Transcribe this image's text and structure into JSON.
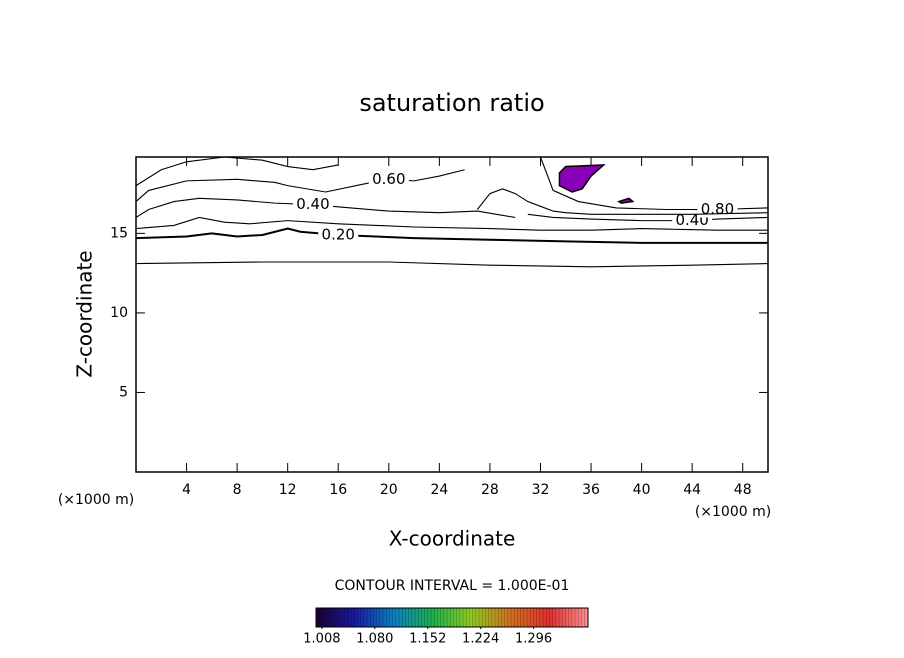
{
  "chart_data": {
    "type": "contour",
    "title": "saturation ratio",
    "x_label": "X-coordinate",
    "y_label": "Z-coordinate",
    "x_unit": "(×1000 m)",
    "y_unit": "(×1000 m)",
    "xlim": [
      0,
      50
    ],
    "ylim": [
      0,
      19.8
    ],
    "xticks": [
      4,
      8,
      12,
      16,
      20,
      24,
      28,
      32,
      36,
      40,
      44,
      48
    ],
    "yticks": [
      5,
      10,
      15
    ],
    "line_color": "#000000",
    "contours": [
      {
        "x": [
          0,
          10,
          20,
          28,
          36,
          44,
          50
        ],
        "y": [
          13.1,
          13.2,
          13.2,
          13.0,
          12.9,
          13.0,
          13.1
        ]
      },
      {
        "level": {
          "value": 0.2,
          "label": "0.20"
        },
        "x": [
          0,
          4,
          6,
          8,
          10,
          12,
          13,
          16,
          22,
          28,
          34,
          40,
          46,
          50
        ],
        "y": [
          14.7,
          14.8,
          15.0,
          14.8,
          14.9,
          15.3,
          15.1,
          14.9,
          14.7,
          14.6,
          14.5,
          14.4,
          14.4,
          14.4
        ]
      },
      {
        "x": [
          0,
          3,
          5,
          7,
          9,
          12,
          16,
          22,
          28,
          32,
          36,
          40,
          46,
          50
        ],
        "y": [
          15.3,
          15.5,
          16.0,
          15.7,
          15.6,
          15.8,
          15.6,
          15.4,
          15.3,
          15.2,
          15.2,
          15.3,
          15.2,
          15.2
        ]
      },
      {
        "level": {
          "value": 0.4,
          "label": "0.40"
        },
        "x": [
          0,
          1,
          3,
          5,
          8,
          11,
          14,
          17,
          20,
          24,
          27,
          30
        ],
        "y": [
          16.0,
          16.5,
          17.0,
          17.2,
          17.1,
          16.9,
          16.8,
          16.6,
          16.4,
          16.3,
          16.4,
          16.0
        ]
      },
      {
        "level": {
          "value": 0.4,
          "label": "0.40"
        },
        "x": [
          31,
          33,
          36,
          40,
          44,
          46,
          50
        ],
        "y": [
          16.2,
          16.0,
          15.9,
          15.8,
          15.8,
          15.9,
          16.0
        ]
      },
      {
        "level": {
          "value": 0.6,
          "label": "0.60"
        },
        "x": [
          0,
          1,
          4,
          8,
          11,
          12,
          15,
          18,
          20,
          22,
          24,
          26
        ],
        "y": [
          17.0,
          17.7,
          18.3,
          18.4,
          18.2,
          18.0,
          17.6,
          18.1,
          18.4,
          18.3,
          18.6,
          19.0
        ]
      },
      {
        "level": {
          "value": 0.8,
          "label": "0.80"
        },
        "x": [
          32,
          33,
          35,
          38,
          42,
          46,
          50
        ],
        "y": [
          19.8,
          17.7,
          17.0,
          16.6,
          16.5,
          16.5,
          16.6
        ]
      },
      {
        "x": [
          0,
          2,
          4,
          7,
          10,
          12,
          14,
          16
        ],
        "y": [
          18.0,
          19.0,
          19.5,
          19.8,
          19.6,
          19.2,
          19.0,
          19.3
        ]
      },
      {
        "x": [
          27,
          28,
          29,
          30,
          31,
          32,
          33,
          34,
          36,
          40,
          44,
          50
        ],
        "y": [
          16.5,
          17.5,
          17.8,
          17.5,
          17.0,
          16.7,
          16.4,
          16.3,
          16.2,
          16.2,
          16.2,
          16.3
        ]
      }
    ],
    "regions": [
      {
        "color": "#8a00b8",
        "x": [
          33.5,
          34,
          37,
          36,
          35.3,
          34.5,
          33.5
        ],
        "y": [
          18.8,
          19.2,
          19.3,
          18.6,
          17.8,
          17.6,
          18.0
        ]
      },
      {
        "color": "#8a00b8",
        "x": [
          38.2,
          39,
          39.3,
          38.4
        ],
        "y": [
          17.0,
          17.2,
          17.0,
          16.9
        ]
      }
    ],
    "contour_interval": "CONTOUR INTERVAL = 1.000E-01",
    "colorbar": {
      "clim": [
        1.0,
        1.37
      ],
      "colors": [
        "#1a0033",
        "#1a1aa0",
        "#0a80c0",
        "#20b050",
        "#90cc20",
        "#d07020",
        "#e03030",
        "#ff9090"
      ],
      "ticks": [
        1.008,
        {
          "value": 1.08,
          "label": "1.080"
        },
        1.152,
        1.224,
        1.296
      ]
    }
  }
}
